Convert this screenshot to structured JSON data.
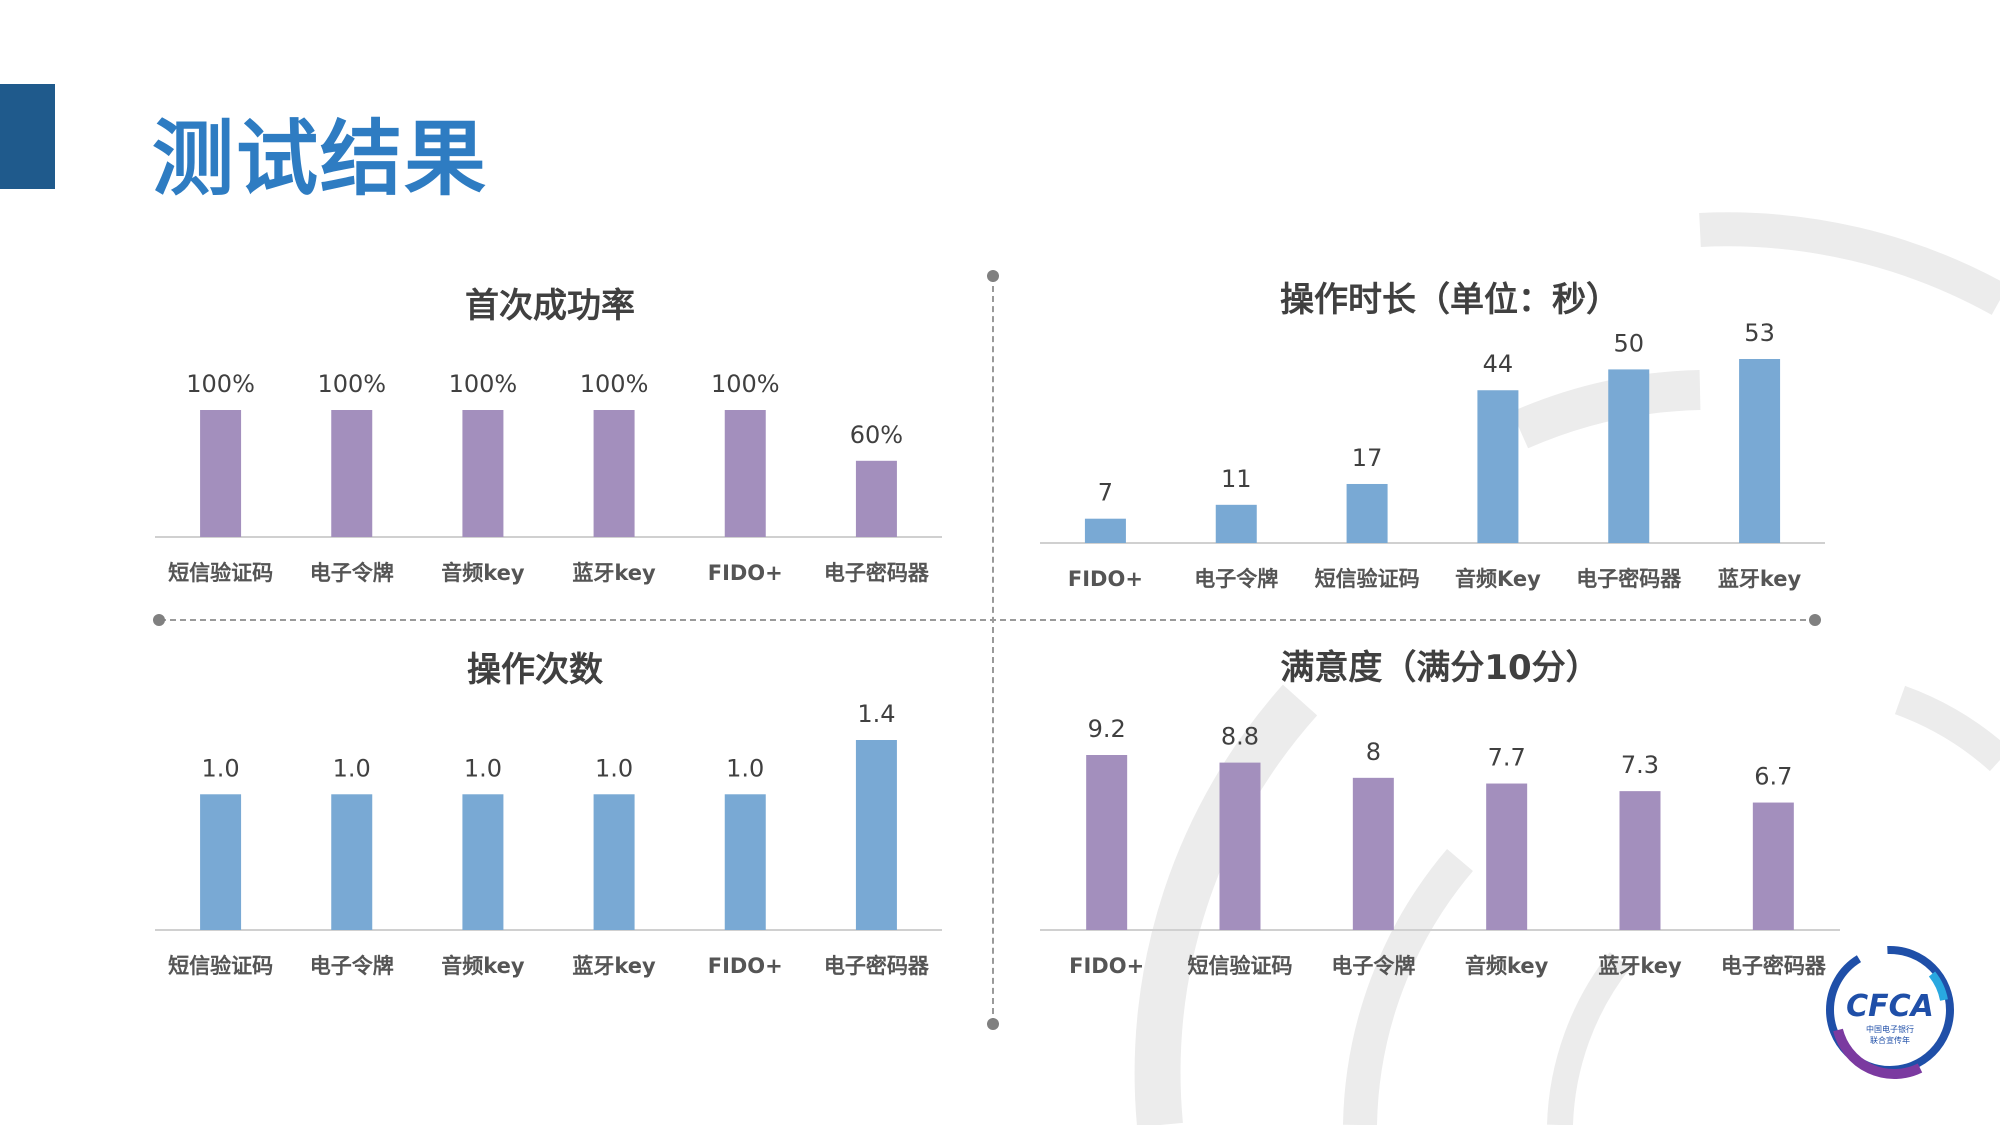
{
  "page": {
    "title": "测试结果"
  },
  "colors": {
    "purple": "#a38fbd",
    "blue": "#79a9d4",
    "axis": "#d0d0d0",
    "label": "#404040",
    "title_blue": "#2e7cc2",
    "accent_bar": "#1f5a8c"
  },
  "logo": {
    "text": "CFCA",
    "subtext_line1": "中国电子银行",
    "subtext_line2": "联合宣传年"
  },
  "chart_data": [
    {
      "type": "bar",
      "title": "首次成功率",
      "categories": [
        "短信验证码",
        "电子令牌",
        "音频key",
        "蓝牙key",
        "FIDO+",
        "电子密码器"
      ],
      "values": [
        100,
        100,
        100,
        100,
        100,
        60
      ],
      "value_labels": [
        "100%",
        "100%",
        "100%",
        "100%",
        "100%",
        "60%"
      ],
      "ylim": [
        0,
        100
      ],
      "color": "#a38fbd"
    },
    {
      "type": "bar",
      "title": "操作时长（单位：秒）",
      "categories": [
        "FIDO+",
        "电子令牌",
        "短信验证码",
        "音频Key",
        "电子密码器",
        "蓝牙key"
      ],
      "values": [
        7,
        11,
        17,
        44,
        50,
        53
      ],
      "value_labels": [
        "7",
        "11",
        "17",
        "44",
        "50",
        "53"
      ],
      "ylim": [
        0,
        53
      ],
      "color": "#79a9d4"
    },
    {
      "type": "bar",
      "title": "操作次数",
      "categories": [
        "短信验证码",
        "电子令牌",
        "音频key",
        "蓝牙key",
        "FIDO+",
        "电子密码器"
      ],
      "values": [
        1.0,
        1.0,
        1.0,
        1.0,
        1.0,
        1.4
      ],
      "value_labels": [
        "1.0",
        "1.0",
        "1.0",
        "1.0",
        "1.0",
        "1.4"
      ],
      "ylim": [
        0,
        1.4
      ],
      "color": "#79a9d4"
    },
    {
      "type": "bar",
      "title": "满意度（满分10分）",
      "categories": [
        "FIDO+",
        "短信验证码",
        "电子令牌",
        "音频key",
        "蓝牙key",
        "电子密码器"
      ],
      "values": [
        9.2,
        8.8,
        8,
        7.7,
        7.3,
        6.7
      ],
      "value_labels": [
        "9.2",
        "8.8",
        "8",
        "7.7",
        "7.3",
        "6.7"
      ],
      "ylim": [
        0,
        9.2
      ],
      "color": "#a38fbd"
    }
  ]
}
